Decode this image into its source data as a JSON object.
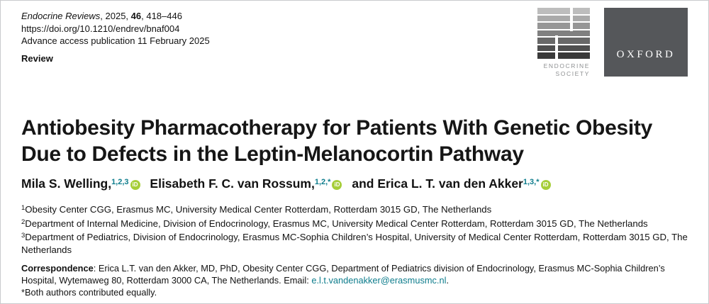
{
  "colors": {
    "accent_teal": "#0D7C8C",
    "orcid_green": "#A6CE39",
    "oxford_box_gray": "#55575A"
  },
  "masthead": {
    "journal_name": "Endocrine Reviews",
    "cite_middle": ", 2025, ",
    "volume": "46",
    "cite_pages": ", 418–446",
    "doi": "https://doi.org/10.1210/endrev/bnaf004",
    "advance_access": "Advance access publication 11 February 2025",
    "article_type": "Review"
  },
  "logos": {
    "endocrine_society_line1": "ENDOCRINE",
    "endocrine_society_line2": "SOCIETY",
    "oxford": "OXFORD"
  },
  "icons": {
    "orcid": "iD"
  },
  "article": {
    "title": "Antiobesity Pharmacotherapy for Patients With Genetic Obesity Due to Defects in the Leptin-Melanocortin Pathway",
    "authors": [
      {
        "name": "Mila S. Welling,",
        "sup": "1,2,3"
      },
      {
        "name": "Elisabeth F. C. van Rossum,",
        "sup": "1,2,*"
      },
      {
        "name": "and Erica L. T. van den Akker",
        "sup": "1,3,*"
      }
    ],
    "affiliations": [
      {
        "sup": "1",
        "text": "Obesity Center CGG, Erasmus MC, University Medical Center Rotterdam, Rotterdam 3015 GD, The Netherlands"
      },
      {
        "sup": "2",
        "text": "Department of Internal Medicine, Division of Endocrinology, Erasmus MC, University Medical Center Rotterdam, Rotterdam 3015 GD, The Netherlands"
      },
      {
        "sup": "3",
        "text": "Department of Pediatrics, Division of Endocrinology, Erasmus MC-Sophia Children’s Hospital, University of Medical Center Rotterdam, Rotterdam 3015 GD, The Netherlands"
      }
    ],
    "correspondence": {
      "label": "Correspondence",
      "body": ": Erica L.T. van den Akker, MD, PhD, Obesity Center CGG, Department of Pediatrics division of Endocrinology, Erasmus MC-Sophia Children’s Hospital, Wytemaweg 80, Rotterdam 3000 CA, The Netherlands. Email: ",
      "email": "e.l.t.vandenakker@erasmusmc.nl",
      "suffix": ".",
      "equal_contribution_note": "*Both authors contributed equally."
    }
  }
}
